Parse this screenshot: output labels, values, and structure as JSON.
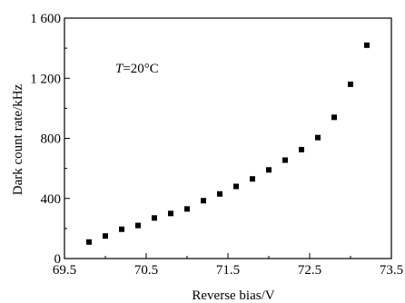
{
  "chart_data": {
    "type": "scatter",
    "title": "",
    "xlabel": "Reverse bias/V",
    "ylabel": "Dark count rate/kHz",
    "xlim": [
      69.5,
      73.5
    ],
    "ylim": [
      0,
      1600
    ],
    "xticks": [
      69.5,
      70.5,
      71.5,
      72.5,
      73.5
    ],
    "xtick_labels": [
      "69.5",
      "70.5",
      "71.5",
      "72.5",
      "73.5"
    ],
    "yticks": [
      0,
      400,
      800,
      1200,
      1600
    ],
    "ytick_labels": [
      "0",
      "400",
      "800",
      "1 200",
      "1 600"
    ],
    "grid": false,
    "annotation": {
      "var": "T",
      "rest": "=20°C"
    },
    "series": [
      {
        "marker": "square",
        "color": "#000000",
        "x": [
          69.8,
          70.0,
          70.2,
          70.4,
          70.6,
          70.8,
          71.0,
          71.2,
          71.4,
          71.6,
          71.8,
          72.0,
          72.2,
          72.4,
          72.6,
          72.8,
          73.0,
          73.2
        ],
        "y": [
          110,
          150,
          195,
          220,
          270,
          300,
          330,
          385,
          430,
          480,
          530,
          590,
          655,
          725,
          805,
          940,
          1160,
          1420
        ]
      }
    ]
  }
}
